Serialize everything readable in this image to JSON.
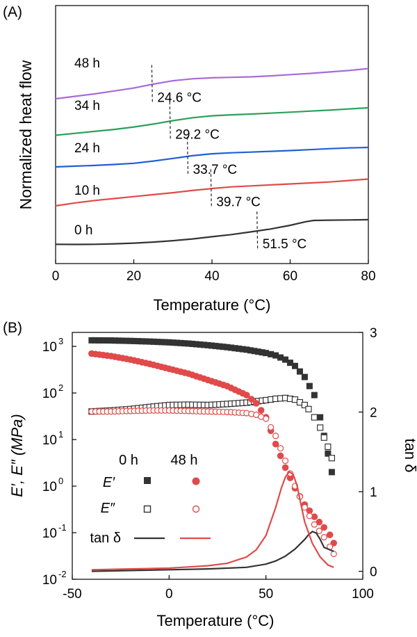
{
  "chart_data": [
    {
      "panel_label": "(A)",
      "type": "line",
      "xlabel": "Temperature (°C)",
      "ylabel": "Normalized heat flow",
      "xlim": [
        0,
        80
      ],
      "x_ticks": [
        0,
        20,
        40,
        60,
        80
      ],
      "series": [
        {
          "name": "0 h",
          "color": "#333333",
          "tg_label": "51.5 °C",
          "tg": 51.5,
          "x": [
            0,
            5,
            10,
            15,
            20,
            25,
            30,
            35,
            40,
            45,
            50,
            55,
            60,
            64,
            66,
            70,
            75,
            80
          ],
          "y": [
            0.02,
            0.015,
            0.02,
            0.04,
            0.07,
            0.11,
            0.17,
            0.24,
            0.33,
            0.42,
            0.53,
            0.65,
            0.8,
            0.95,
            1.0,
            1.01,
            1.02,
            1.03
          ]
        },
        {
          "name": "10 h",
          "color": "#e04a4a",
          "tg_label": "39.7 °C",
          "tg": 39.7,
          "x": [
            0,
            5,
            10,
            15,
            20,
            25,
            30,
            35,
            40,
            45,
            50,
            55,
            60,
            65,
            70,
            75,
            80
          ],
          "y": [
            1.6,
            1.72,
            1.82,
            1.9,
            1.98,
            2.06,
            2.14,
            2.23,
            2.31,
            2.38,
            2.42,
            2.46,
            2.5,
            2.54,
            2.58,
            2.64,
            2.7
          ]
        },
        {
          "name": "24 h",
          "color": "#1f5fd6",
          "tg_label": "33.7 °C",
          "tg": 33.7,
          "x": [
            0,
            5,
            10,
            15,
            20,
            25,
            30,
            35,
            40,
            45,
            50,
            55,
            60,
            65,
            70,
            75,
            80
          ],
          "y": [
            3.2,
            3.23,
            3.26,
            3.3,
            3.35,
            3.44,
            3.55,
            3.66,
            3.74,
            3.78,
            3.81,
            3.84,
            3.87,
            3.91,
            3.95,
            3.98,
            4.0
          ]
        },
        {
          "name": "34 h",
          "color": "#2aa05a",
          "tg_label": "29.2 °C",
          "tg": 29.2,
          "x": [
            0,
            5,
            10,
            15,
            20,
            25,
            30,
            35,
            40,
            45,
            50,
            55,
            60,
            65,
            70,
            75,
            80
          ],
          "y": [
            4.5,
            4.58,
            4.66,
            4.74,
            4.84,
            4.96,
            5.1,
            5.22,
            5.3,
            5.34,
            5.37,
            5.41,
            5.45,
            5.49,
            5.53,
            5.58,
            5.63
          ]
        },
        {
          "name": "48 h",
          "color": "#a86ad8",
          "tg_label": "24.6 °C",
          "tg": 24.6,
          "x": [
            0,
            5,
            10,
            15,
            20,
            25,
            30,
            35,
            40,
            45,
            50,
            55,
            60,
            65,
            70,
            75,
            80
          ],
          "y": [
            6.0,
            6.1,
            6.2,
            6.32,
            6.44,
            6.6,
            6.74,
            6.82,
            6.86,
            6.88,
            6.9,
            6.94,
            6.99,
            7.04,
            7.1,
            7.16,
            7.24
          ]
        }
      ]
    },
    {
      "panel_label": "(B)",
      "type": "scatter",
      "xlabel": "Temperature (°C)",
      "ylabel_left": "E′, E″ (MPa)",
      "ylabel_right": "tan δ",
      "xlim": [
        -50,
        100
      ],
      "x_ticks": [
        -50,
        0,
        50,
        100
      ],
      "y_left_log": true,
      "y_left_range_log10": [
        -2,
        3.3
      ],
      "y_left_ticks": [
        {
          "base": "10",
          "exp": "-2",
          "log": -2
        },
        {
          "base": "10",
          "exp": "-1",
          "log": -1
        },
        {
          "base": "10",
          "exp": "0",
          "log": 0
        },
        {
          "base": "10",
          "exp": "1",
          "log": 1
        },
        {
          "base": "10",
          "exp": "2",
          "log": 2
        },
        {
          "base": "10",
          "exp": "3",
          "log": 3
        }
      ],
      "y_right_range": [
        -0.1,
        3
      ],
      "y_right_ticks": [
        0,
        1,
        2,
        3
      ],
      "legend": {
        "col_0h": "0 h",
        "col_48h": "48 h",
        "row_E1": "E′",
        "row_E2": "E″",
        "row_tan": "tan δ"
      },
      "colors": {
        "h0": "#333333",
        "h48": "#e04a4a"
      },
      "series": [
        {
          "name": "0 h E′",
          "axis": "left",
          "marker": "filled-square",
          "color": "#333333",
          "x": [
            -40,
            -30,
            -20,
            -10,
            0,
            10,
            20,
            30,
            40,
            50,
            55,
            60,
            65,
            70,
            75,
            78,
            80,
            82,
            84
          ],
          "y": [
            1350,
            1340,
            1310,
            1270,
            1220,
            1150,
            1060,
            960,
            850,
            720,
            640,
            520,
            380,
            220,
            90,
            30,
            12,
            5,
            2
          ]
        },
        {
          "name": "0 h E″",
          "axis": "left",
          "marker": "open-square",
          "color": "#333333",
          "x": [
            -40,
            -30,
            -20,
            -10,
            0,
            10,
            20,
            30,
            40,
            50,
            55,
            60,
            65,
            70,
            72,
            75,
            78,
            80,
            82,
            84
          ],
          "y": [
            40,
            42,
            45,
            50,
            55,
            56,
            55,
            58,
            62,
            70,
            75,
            78,
            72,
            55,
            45,
            30,
            18,
            11,
            7,
            4
          ]
        },
        {
          "name": "48 h E′",
          "axis": "left",
          "marker": "filled-circle",
          "color": "#e04a4a",
          "x": [
            -40,
            -30,
            -20,
            -10,
            0,
            10,
            20,
            30,
            40,
            45,
            50,
            55,
            60,
            65,
            70,
            75,
            80,
            83,
            85
          ],
          "y": [
            700,
            620,
            520,
            420,
            330,
            260,
            190,
            140,
            90,
            60,
            30,
            8,
            2.5,
            0.9,
            0.4,
            0.22,
            0.13,
            0.09,
            0.06
          ]
        },
        {
          "name": "48 h E″",
          "axis": "left",
          "marker": "open-circle",
          "color": "#e04a4a",
          "x": [
            -40,
            -30,
            -20,
            -10,
            0,
            10,
            20,
            30,
            40,
            45,
            50,
            55,
            60,
            65,
            70,
            75,
            80,
            83,
            85
          ],
          "y": [
            40,
            40,
            41,
            42,
            42,
            41,
            40,
            39,
            37,
            34,
            28,
            12,
            3.5,
            1.0,
            0.35,
            0.15,
            0.08,
            0.05,
            0.035
          ]
        },
        {
          "name": "0 h tan δ",
          "axis": "right",
          "marker": "line",
          "color": "#333333",
          "x": [
            -40,
            -20,
            0,
            20,
            40,
            50,
            55,
            60,
            65,
            70,
            72,
            74,
            76,
            78,
            80,
            85
          ],
          "y": [
            0.0,
            0.01,
            0.02,
            0.03,
            0.05,
            0.09,
            0.13,
            0.19,
            0.28,
            0.4,
            0.46,
            0.5,
            0.48,
            0.4,
            0.3,
            0.25
          ]
        },
        {
          "name": "48 h tan δ",
          "axis": "right",
          "marker": "line",
          "color": "#e04a4a",
          "x": [
            -40,
            -20,
            0,
            20,
            30,
            40,
            45,
            50,
            55,
            58,
            60,
            62,
            64,
            66,
            68,
            70,
            74,
            78,
            82,
            85
          ],
          "y": [
            0.02,
            0.03,
            0.04,
            0.07,
            0.1,
            0.18,
            0.27,
            0.45,
            0.8,
            1.05,
            1.18,
            1.25,
            1.22,
            1.08,
            0.85,
            0.62,
            0.35,
            0.18,
            0.08,
            0.05
          ]
        }
      ]
    }
  ]
}
